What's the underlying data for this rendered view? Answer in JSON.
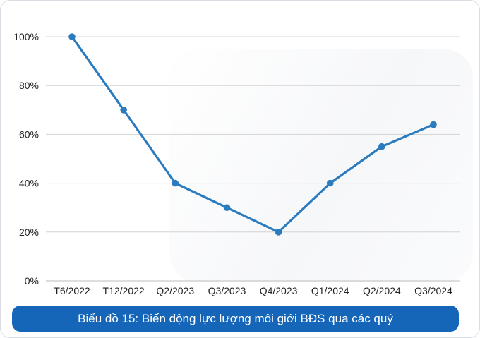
{
  "chart_data": {
    "type": "line",
    "title": "Biểu đồ 15: Biến động lực lượng môi giới BĐS qua các quý",
    "xlabel": "",
    "ylabel": "",
    "categories": [
      "T6/2022",
      "T12/2022",
      "Q2/2023",
      "Q3/2023",
      "Q4/2023",
      "Q1/2024",
      "Q2/2024",
      "Q3/2024"
    ],
    "series": [
      {
        "values": [
          100,
          70,
          40,
          30,
          20,
          40,
          55,
          64
        ],
        "color": "#2b7bbf"
      }
    ],
    "ylim": [
      0,
      100
    ],
    "yticks": [
      "0%",
      "20%",
      "40%",
      "60%",
      "80%",
      "100%"
    ],
    "grid": true,
    "legend": "none"
  },
  "caption": {
    "text": "Biểu đồ 15: Biến động lực lượng môi giới BĐS qua các quý",
    "bg_color": "#1565b8"
  }
}
